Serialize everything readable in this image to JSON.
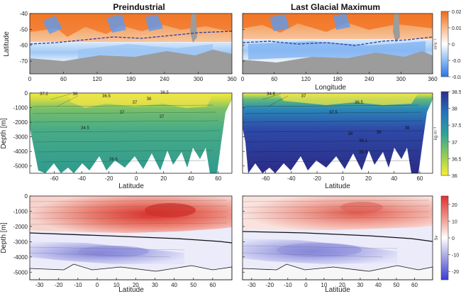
{
  "titles": {
    "left": "Preindustrial",
    "right": "Last Glacial Maximum"
  },
  "chart_data": [
    {
      "type": "heatmap",
      "name": "surface-flux-maps",
      "xlabel": "Longitude",
      "ylabel": "Latitude",
      "xlim": [
        0,
        360
      ],
      "ylim": [
        -78,
        -40
      ],
      "x_ticks": [
        "0",
        "60",
        "120",
        "180",
        "240",
        "300",
        "360"
      ],
      "y_ticks": [
        "-40",
        "-50",
        "-60",
        "-70"
      ],
      "colorbar": {
        "unit": "m²s⁻¹",
        "ticks": [
          "0.02",
          "0.01",
          "0",
          "-0.01",
          "-0.02"
        ],
        "range": [
          -0.02,
          0.02
        ]
      },
      "panels": [
        {
          "title": "Preindustrial",
          "front_lat": [
            -56,
            -55,
            -57,
            -54,
            -55,
            -53,
            -52
          ]
        },
        {
          "title": "Last Glacial Maximum",
          "front_lat": [
            -54,
            -55,
            -58,
            -56,
            -57,
            -55,
            -53
          ]
        }
      ]
    },
    {
      "type": "heatmap",
      "name": "density-sections",
      "xlabel": "Latitude",
      "ylabel": "Depth [m]",
      "xlim": [
        -78,
        70
      ],
      "ylim": [
        -5500,
        0
      ],
      "x_ticks": [
        "-60",
        "-40",
        "-20",
        "0",
        "20",
        "40",
        "60"
      ],
      "y_ticks": [
        "0",
        "-1000",
        "-2000",
        "-3000",
        "-4000",
        "-5000"
      ],
      "colorbar": {
        "unit": "kg m⁻³",
        "ticks": [
          "38.5",
          "38",
          "37.5",
          "37",
          "36.5",
          "36"
        ],
        "range": [
          36,
          38.5
        ]
      },
      "panels": [
        {
          "title": "Preindustrial",
          "contour_labels": [
            "37.2",
            "36",
            "36.5",
            "37",
            "37",
            "36.5",
            "36",
            "37",
            "34.5",
            "36.6"
          ]
        },
        {
          "title": "Last Glacial Maximum",
          "contour_labels": [
            "34.8",
            "37",
            "37.5",
            "36.5",
            "38",
            "38",
            "38",
            "38.1",
            "38.3"
          ]
        }
      ]
    },
    {
      "type": "heatmap",
      "name": "overturning-streamfunction",
      "xlabel": "Latitude",
      "ylabel": "Depth [m]",
      "xlim": [
        -35,
        70
      ],
      "ylim": [
        -5500,
        0
      ],
      "x_ticks": [
        "-30",
        "-20",
        "-10",
        "0",
        "10",
        "20",
        "30",
        "40",
        "50",
        "60"
      ],
      "y_ticks": [
        "0",
        "-1000",
        "-2000",
        "-3000",
        "-4000",
        "-5000"
      ],
      "colorbar": {
        "unit": "Sv",
        "ticks": [
          "20",
          "10",
          "0",
          "-10",
          "-20"
        ],
        "range": [
          -25,
          25
        ]
      },
      "panels": [
        {
          "title": "Preindustrial",
          "upper_cell_max": 22,
          "lower_cell_min": -8,
          "zero_depth": -2300
        },
        {
          "title": "Last Glacial Maximum",
          "upper_cell_max": 18,
          "lower_cell_min": -10,
          "zero_depth": -2100
        }
      ]
    }
  ]
}
